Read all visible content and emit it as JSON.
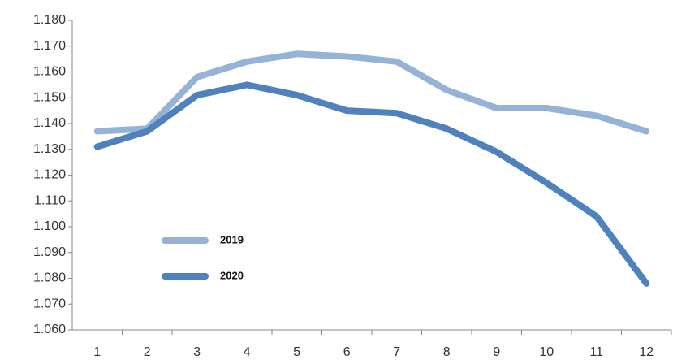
{
  "chart_data": {
    "type": "line",
    "categories": [
      "1",
      "2",
      "3",
      "4",
      "5",
      "6",
      "7",
      "8",
      "9",
      "10",
      "11",
      "12"
    ],
    "series": [
      {
        "name": "2019",
        "color": "#95b3d7",
        "values": [
          1.137,
          1.138,
          1.158,
          1.164,
          1.167,
          1.166,
          1.164,
          1.153,
          1.146,
          1.146,
          1.143,
          1.137
        ]
      },
      {
        "name": "2020",
        "color": "#4f81bd",
        "values": [
          1.131,
          1.137,
          1.151,
          1.155,
          1.151,
          1.145,
          1.144,
          1.138,
          1.129,
          1.117,
          1.104,
          1.078
        ]
      }
    ],
    "ylim": [
      1.06,
      1.18
    ],
    "yticks": [
      {
        "value": 1.06,
        "label": "1.060"
      },
      {
        "value": 1.07,
        "label": "1.070"
      },
      {
        "value": 1.08,
        "label": "1.080"
      },
      {
        "value": 1.09,
        "label": "1.090"
      },
      {
        "value": 1.1,
        "label": "1.100"
      },
      {
        "value": 1.11,
        "label": "1.110"
      },
      {
        "value": 1.12,
        "label": "1.120"
      },
      {
        "value": 1.13,
        "label": "1.130"
      },
      {
        "value": 1.14,
        "label": "1.140"
      },
      {
        "value": 1.15,
        "label": "1.150"
      },
      {
        "value": 1.16,
        "label": "1.160"
      },
      {
        "value": 1.17,
        "label": "1.170"
      },
      {
        "value": 1.18,
        "label": "1.180"
      }
    ],
    "grid": false
  }
}
